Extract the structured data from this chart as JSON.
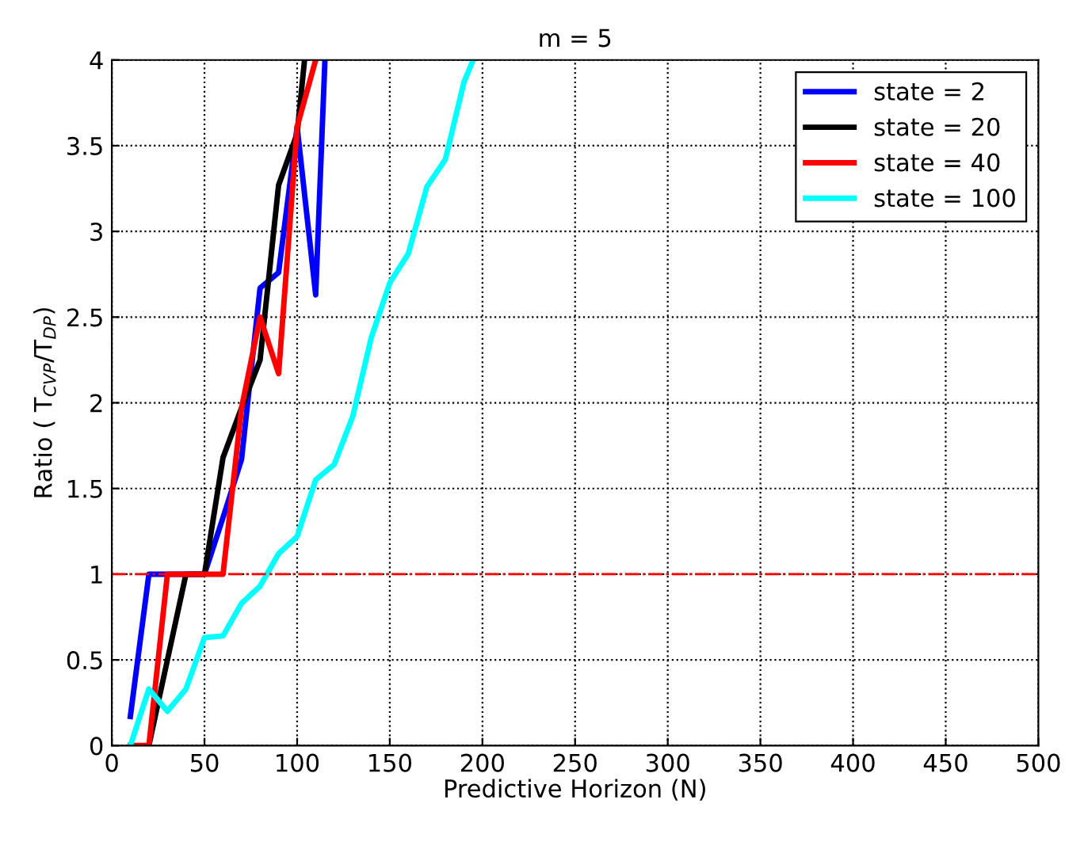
{
  "chart_data": {
    "type": "line",
    "title": "m = 5",
    "xlabel": "Predictive Horizon (N)",
    "ylabel": "Ratio ( T$_{CVP}$/T$_{DP}$)",
    "xlim": [
      0,
      500
    ],
    "xticks": [
      0,
      50,
      100,
      150,
      200,
      250,
      300,
      350,
      400,
      450,
      500
    ],
    "ylim": [
      0,
      4
    ],
    "yticks": [
      0,
      0.5,
      1,
      1.5,
      2,
      2.5,
      3,
      3.5,
      4
    ],
    "grid": true,
    "legend": "top right",
    "marker": "none",
    "line_style": "solid",
    "series": [
      {
        "name": "state = 2",
        "color": "#0000ff",
        "x": [
          10,
          20,
          30,
          50,
          60,
          70,
          80,
          90,
          100,
          110,
          115
        ],
        "values": [
          0.17,
          1,
          1,
          1,
          1.33,
          1.67,
          2.67,
          2.76,
          3.61,
          2.63,
          4
        ]
      },
      {
        "name": "state = 20",
        "color": "#000000",
        "x": [
          20,
          30,
          40,
          50,
          60,
          70,
          80,
          90,
          100,
          104
        ],
        "values": [
          0,
          0.5,
          1,
          1,
          1.68,
          1.97,
          2.25,
          3.27,
          3.57,
          4
        ]
      },
      {
        "name": "state = 40",
        "color": "#ff0000",
        "x": [
          10,
          20,
          30,
          40,
          50,
          60,
          70,
          80,
          90,
          100,
          110
        ],
        "values": [
          0,
          0,
          1,
          1,
          1,
          1,
          1.97,
          2.5,
          2.17,
          3.61,
          4
        ]
      },
      {
        "name": "state = 100",
        "color": "#00ffff",
        "x": [
          10,
          20,
          30,
          40,
          50,
          60,
          70,
          80,
          90,
          100,
          110,
          120,
          130,
          140,
          150,
          160,
          170,
          180,
          190,
          195
        ],
        "values": [
          0,
          0.33,
          0.2,
          0.33,
          0.63,
          0.64,
          0.83,
          0.93,
          1.12,
          1.22,
          1.55,
          1.64,
          1.92,
          2.38,
          2.7,
          2.87,
          3.26,
          3.42,
          3.87,
          4
        ]
      }
    ],
    "ref_lines": [
      {
        "axis": "y",
        "value": 1,
        "color": "#ff0000",
        "line_style": "dashdot"
      }
    ]
  }
}
